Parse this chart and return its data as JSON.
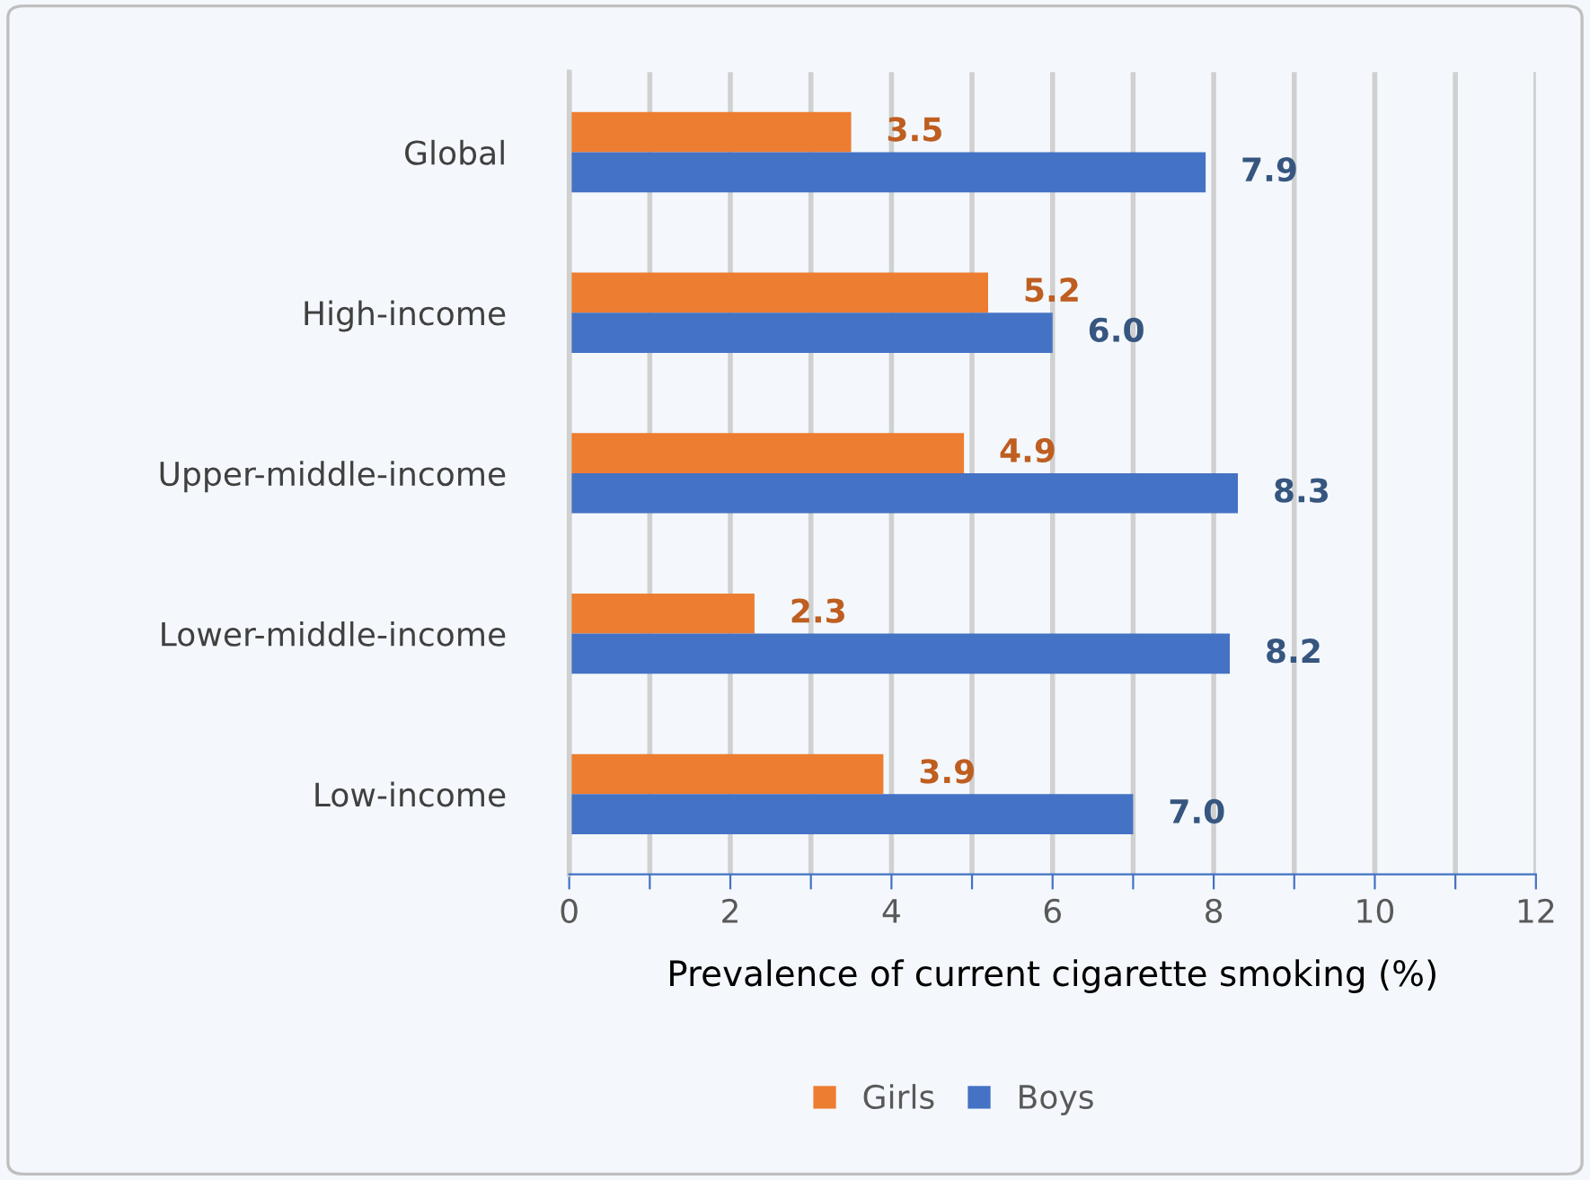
{
  "chart_data": {
    "type": "bar",
    "orientation": "horizontal",
    "xlabel": "Prevalence of current cigarette smoking (%)",
    "categories": [
      "Global",
      "High-income",
      "Upper-middle-income",
      "Lower-middle-income",
      "Low-income"
    ],
    "series": [
      {
        "name": "Girls",
        "color": "#ed7d31",
        "values": [
          3.5,
          5.2,
          4.9,
          2.3,
          3.9
        ],
        "value_labels": [
          "3.5",
          "5.2",
          "4.9",
          "2.3",
          "3.9"
        ]
      },
      {
        "name": "Boys",
        "color": "#4472c4",
        "values": [
          7.9,
          6.0,
          8.3,
          8.2,
          7.0
        ],
        "value_labels": [
          "7.9",
          "6.0",
          "8.3",
          "8.2",
          "7.0"
        ]
      }
    ],
    "xlim": [
      0,
      12
    ],
    "xticks": [
      0,
      {
        "value": 1,
        "label": null
      },
      2,
      {
        "value": 3,
        "label": null
      },
      4,
      {
        "value": 5,
        "label": null
      },
      6,
      {
        "value": 7,
        "label": null
      },
      8,
      {
        "value": 9,
        "label": null
      },
      10,
      {
        "value": 11,
        "label": null
      },
      12
    ],
    "grid": "x",
    "legend": "bottom"
  }
}
